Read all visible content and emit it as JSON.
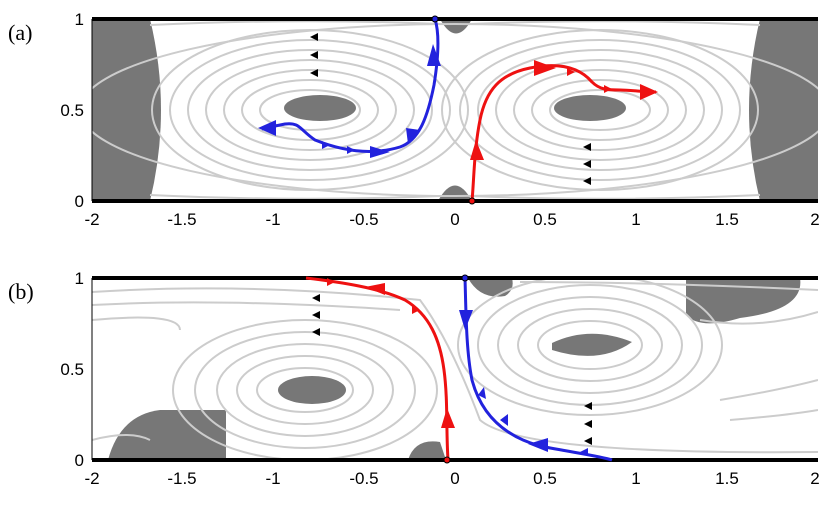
{
  "panels": [
    {
      "label": "(a)",
      "xticks": [
        "-2",
        "-1.5",
        "-1",
        "-0.5",
        "0",
        "0.5",
        "1",
        "1.5",
        "2"
      ],
      "yticks": [
        "0",
        "0.5",
        "1"
      ],
      "colors": {
        "stream": "#cccccc",
        "region": "#777777",
        "wall": "#000000",
        "path_a": "#2222dd",
        "path_b": "#ee1111"
      }
    },
    {
      "label": "(b)",
      "xticks": [
        "-2",
        "-1.5",
        "-1",
        "-0.5",
        "0",
        "0.5",
        "1",
        "1.5",
        "2"
      ],
      "yticks": [
        "0",
        "0.5",
        "1"
      ],
      "colors": {
        "stream": "#cccccc",
        "region": "#777777",
        "wall": "#000000",
        "path_a": "#2222dd",
        "path_b": "#ee1111"
      }
    }
  ]
}
